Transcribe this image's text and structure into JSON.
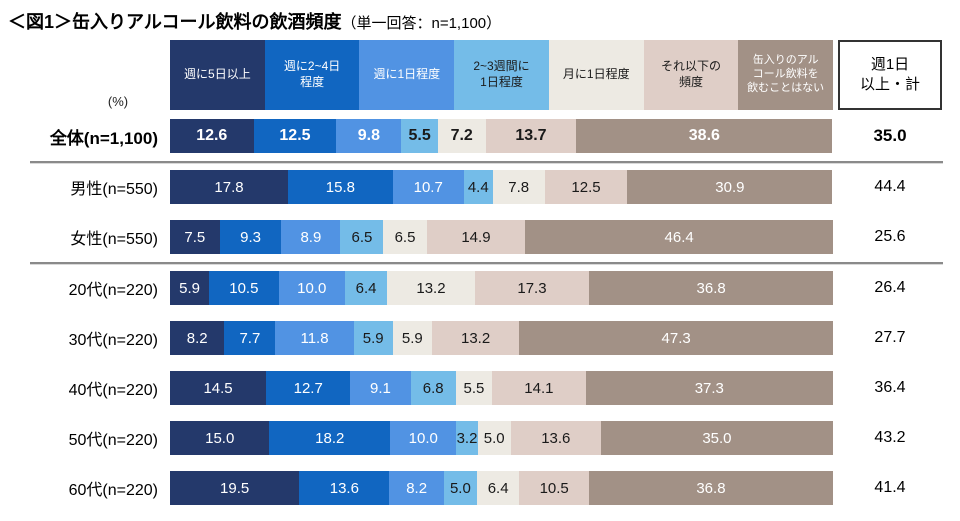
{
  "title": {
    "main": "＜図1＞缶入りアルコール飲料の飲酒頻度",
    "sub": "（単一回答：n=1,100）"
  },
  "unit_label": "(%)",
  "legend": {
    "items": [
      {
        "label": "週に5日以上",
        "color": "#24396B",
        "text_color": "#ffffff",
        "small": false
      },
      {
        "label": "週に2~4日\n程度",
        "color": "#1166C1",
        "text_color": "#ffffff",
        "small": false
      },
      {
        "label": "週に1日程度",
        "color": "#5193E3",
        "text_color": "#ffffff",
        "small": false
      },
      {
        "label": "2~3週間に\n1日程度",
        "color": "#74BCE8",
        "text_color": "#1a1a1a",
        "small": false
      },
      {
        "label": "月に1日程度",
        "color": "#EDEAE3",
        "text_color": "#1a1a1a",
        "small": false
      },
      {
        "label": "それ以下の\n頻度",
        "color": "#DFCEC7",
        "text_color": "#1a1a1a",
        "small": false
      },
      {
        "label": "缶入りのアル\nコール飲料を\n飲むことはない",
        "color": "#A29186",
        "text_color": "#ffffff",
        "small": true
      }
    ]
  },
  "total_header": "週1日\n以上・計",
  "rows": [
    {
      "label": "全体(n=1,100)",
      "values": [
        "12.6",
        "12.5",
        "9.8",
        "5.5",
        "7.2",
        "13.7",
        "38.6"
      ],
      "total": "35.0",
      "emphasis": true
    },
    {
      "label": "男性(n=550)",
      "values": [
        "17.8",
        "15.8",
        "10.7",
        "4.4",
        "7.8",
        "12.5",
        "30.9"
      ],
      "total": "44.4",
      "emphasis": false
    },
    {
      "label": "女性(n=550)",
      "values": [
        "7.5",
        "9.3",
        "8.9",
        "6.5",
        "6.5",
        "14.9",
        "46.4"
      ],
      "total": "25.6",
      "emphasis": false
    },
    {
      "label": "20代(n=220)",
      "values": [
        "5.9",
        "10.5",
        "10.0",
        "6.4",
        "13.2",
        "17.3",
        "36.8"
      ],
      "total": "26.4",
      "emphasis": false
    },
    {
      "label": "30代(n=220)",
      "values": [
        "8.2",
        "7.7",
        "11.8",
        "5.9",
        "5.9",
        "13.2",
        "47.3"
      ],
      "total": "27.7",
      "emphasis": false
    },
    {
      "label": "40代(n=220)",
      "values": [
        "14.5",
        "12.7",
        "9.1",
        "6.8",
        "5.5",
        "14.1",
        "37.3"
      ],
      "total": "36.4",
      "emphasis": false
    },
    {
      "label": "50代(n=220)",
      "values": [
        "15.0",
        "18.2",
        "10.0",
        "3.2",
        "5.0",
        "13.6",
        "35.0"
      ],
      "total": "43.2",
      "emphasis": false
    },
    {
      "label": "60代(n=220)",
      "values": [
        "19.5",
        "13.6",
        "8.2",
        "5.0",
        "6.4",
        "10.5",
        "36.8"
      ],
      "total": "41.4",
      "emphasis": false
    }
  ],
  "chart_data": {
    "type": "bar",
    "subtype": "horizontal-stacked",
    "title": "＜図1＞缶入りアルコール飲料の飲酒頻度（単一回答：n=1,100）",
    "unit": "%",
    "xlim": [
      0,
      100
    ],
    "categories": [
      "全体(n=1,100)",
      "男性(n=550)",
      "女性(n=550)",
      "20代(n=220)",
      "30代(n=220)",
      "40代(n=220)",
      "50代(n=220)",
      "60代(n=220)"
    ],
    "series": [
      {
        "name": "週に5日以上",
        "color": "#24396B",
        "values": [
          12.6,
          17.8,
          7.5,
          5.9,
          8.2,
          14.5,
          15.0,
          19.5
        ]
      },
      {
        "name": "週に2~4日程度",
        "color": "#1166C1",
        "values": [
          12.5,
          15.8,
          9.3,
          10.5,
          7.7,
          12.7,
          18.2,
          13.6
        ]
      },
      {
        "name": "週に1日程度",
        "color": "#5193E3",
        "values": [
          9.8,
          10.7,
          8.9,
          10.0,
          11.8,
          9.1,
          10.0,
          8.2
        ]
      },
      {
        "name": "2~3週間に1日程度",
        "color": "#74BCE8",
        "values": [
          5.5,
          4.4,
          6.5,
          6.4,
          5.9,
          6.8,
          3.2,
          5.0
        ]
      },
      {
        "name": "月に1日程度",
        "color": "#EDEAE3",
        "values": [
          7.2,
          7.8,
          6.5,
          13.2,
          5.9,
          5.5,
          5.0,
          6.4
        ]
      },
      {
        "name": "それ以下の頻度",
        "color": "#DFCEC7",
        "values": [
          13.7,
          12.5,
          14.9,
          17.3,
          13.2,
          14.1,
          13.6,
          10.5
        ]
      },
      {
        "name": "缶入りのアルコール飲料を飲むことはない",
        "color": "#A29186",
        "values": [
          38.6,
          30.9,
          46.4,
          36.8,
          47.3,
          37.3,
          35.0,
          36.8
        ]
      }
    ],
    "totals": {
      "name": "週1日以上・計",
      "values": [
        35.0,
        44.4,
        25.6,
        26.4,
        27.7,
        36.4,
        43.2,
        41.4
      ]
    },
    "legend_position": "top",
    "grid": false
  }
}
